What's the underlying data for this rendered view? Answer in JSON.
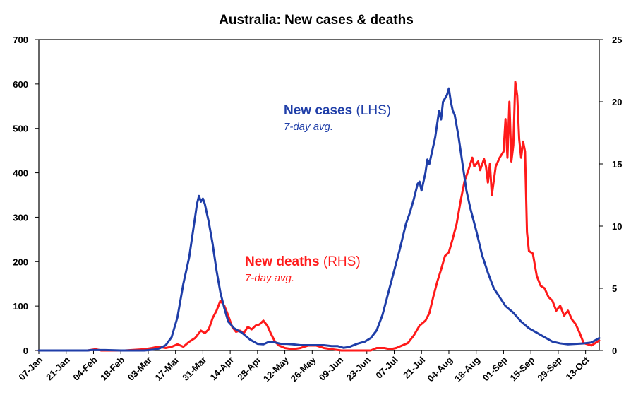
{
  "chart_data": {
    "type": "line",
    "title": "Australia: New cases & deaths",
    "x_tick_labels": [
      "07-Jan",
      "21-Jan",
      "04-Feb",
      "18-Feb",
      "03-Mar",
      "17-Mar",
      "31-Mar",
      "14-Apr",
      "28-Apr",
      "12-May",
      "26-May",
      "09-Jun",
      "23-Jun",
      "07-Jul",
      "21-Jul",
      "04-Aug",
      "18-Aug",
      "01-Sep",
      "15-Sep",
      "29-Sep",
      "13-Oct"
    ],
    "x_range": [
      "2020-01-07",
      "2020-10-20"
    ],
    "y_left": {
      "range": [
        0,
        700
      ],
      "ticks": [
        "0",
        "100",
        "200",
        "300",
        "400",
        "500",
        "600",
        "700"
      ]
    },
    "y_right": {
      "range": [
        0,
        25
      ],
      "ticks": [
        "0",
        "5",
        "10",
        "15",
        "20",
        "25"
      ]
    },
    "grid": false,
    "annotations": {
      "cases_bold": "New cases",
      "cases_norm": " (LHS)",
      "cases_sub": "7-day avg.",
      "deaths_bold": "New deaths",
      "deaths_norm": " (RHS)",
      "deaths_sub": "7-day avg."
    },
    "colors": {
      "cases": "#1f3ea8",
      "deaths": "#ff1a1a"
    },
    "series": [
      {
        "axis": "left",
        "points": [
          [
            "2020-01-07",
            0
          ],
          [
            "2020-01-25",
            0
          ],
          [
            "2020-02-01",
            0
          ],
          [
            "2020-02-03",
            1
          ],
          [
            "2020-02-10",
            1
          ],
          [
            "2020-02-18",
            0
          ],
          [
            "2020-02-25",
            0
          ],
          [
            "2020-03-01",
            0
          ],
          [
            "2020-03-06",
            2
          ],
          [
            "2020-03-09",
            5
          ],
          [
            "2020-03-12",
            12
          ],
          [
            "2020-03-15",
            30
          ],
          [
            "2020-03-18",
            75
          ],
          [
            "2020-03-21",
            150
          ],
          [
            "2020-03-24",
            210
          ],
          [
            "2020-03-26",
            270
          ],
          [
            "2020-03-28",
            330
          ],
          [
            "2020-03-29",
            348
          ],
          [
            "2020-03-30",
            335
          ],
          [
            "2020-03-31",
            342
          ],
          [
            "2020-04-01",
            330
          ],
          [
            "2020-04-03",
            290
          ],
          [
            "2020-04-05",
            240
          ],
          [
            "2020-04-07",
            180
          ],
          [
            "2020-04-09",
            130
          ],
          [
            "2020-04-11",
            95
          ],
          [
            "2020-04-13",
            65
          ],
          [
            "2020-04-16",
            50
          ],
          [
            "2020-04-20",
            40
          ],
          [
            "2020-04-24",
            25
          ],
          [
            "2020-04-28",
            15
          ],
          [
            "2020-05-01",
            14
          ],
          [
            "2020-05-04",
            20
          ],
          [
            "2020-05-07",
            18
          ],
          [
            "2020-05-10",
            15
          ],
          [
            "2020-05-13",
            15
          ],
          [
            "2020-05-16",
            14
          ],
          [
            "2020-05-20",
            12
          ],
          [
            "2020-05-24",
            12
          ],
          [
            "2020-05-28",
            12
          ],
          [
            "2020-06-01",
            12
          ],
          [
            "2020-06-05",
            10
          ],
          [
            "2020-06-08",
            10
          ],
          [
            "2020-06-11",
            6
          ],
          [
            "2020-06-14",
            8
          ],
          [
            "2020-06-18",
            15
          ],
          [
            "2020-06-22",
            20
          ],
          [
            "2020-06-25",
            28
          ],
          [
            "2020-06-28",
            45
          ],
          [
            "2020-07-01",
            80
          ],
          [
            "2020-07-04",
            130
          ],
          [
            "2020-07-07",
            180
          ],
          [
            "2020-07-10",
            230
          ],
          [
            "2020-07-13",
            285
          ],
          [
            "2020-07-15",
            310
          ],
          [
            "2020-07-17",
            340
          ],
          [
            "2020-07-19",
            375
          ],
          [
            "2020-07-20",
            380
          ],
          [
            "2020-07-21",
            360
          ],
          [
            "2020-07-23",
            400
          ],
          [
            "2020-07-24",
            430
          ],
          [
            "2020-07-25",
            420
          ],
          [
            "2020-07-26",
            440
          ],
          [
            "2020-07-28",
            480
          ],
          [
            "2020-07-30",
            540
          ],
          [
            "2020-07-31",
            520
          ],
          [
            "2020-08-01",
            560
          ],
          [
            "2020-08-03",
            575
          ],
          [
            "2020-08-04",
            590
          ],
          [
            "2020-08-05",
            560
          ],
          [
            "2020-08-06",
            540
          ],
          [
            "2020-08-07",
            530
          ],
          [
            "2020-08-09",
            480
          ],
          [
            "2020-08-11",
            420
          ],
          [
            "2020-08-13",
            360
          ],
          [
            "2020-08-15",
            320
          ],
          [
            "2020-08-18",
            270
          ],
          [
            "2020-08-21",
            215
          ],
          [
            "2020-08-24",
            175
          ],
          [
            "2020-08-27",
            140
          ],
          [
            "2020-08-30",
            120
          ],
          [
            "2020-09-02",
            100
          ],
          [
            "2020-09-06",
            85
          ],
          [
            "2020-09-10",
            65
          ],
          [
            "2020-09-14",
            50
          ],
          [
            "2020-09-18",
            40
          ],
          [
            "2020-09-22",
            30
          ],
          [
            "2020-09-26",
            20
          ],
          [
            "2020-09-30",
            16
          ],
          [
            "2020-10-04",
            14
          ],
          [
            "2020-10-08",
            15
          ],
          [
            "2020-10-12",
            16
          ],
          [
            "2020-10-16",
            18
          ],
          [
            "2020-10-20",
            28
          ]
        ]
      },
      {
        "axis": "right",
        "points": [
          [
            "2020-01-07",
            0
          ],
          [
            "2020-01-25",
            0
          ],
          [
            "2020-02-01",
            0
          ],
          [
            "2020-02-05",
            0.1
          ],
          [
            "2020-02-08",
            0
          ],
          [
            "2020-02-20",
            0
          ],
          [
            "2020-03-01",
            0.1
          ],
          [
            "2020-03-05",
            0.2
          ],
          [
            "2020-03-08",
            0.3
          ],
          [
            "2020-03-12",
            0.2
          ],
          [
            "2020-03-15",
            0.3
          ],
          [
            "2020-03-18",
            0.5
          ],
          [
            "2020-03-21",
            0.3
          ],
          [
            "2020-03-24",
            0.7
          ],
          [
            "2020-03-27",
            1.0
          ],
          [
            "2020-03-30",
            1.6
          ],
          [
            "2020-04-01",
            1.4
          ],
          [
            "2020-04-03",
            1.7
          ],
          [
            "2020-04-05",
            2.6
          ],
          [
            "2020-04-07",
            3.2
          ],
          [
            "2020-04-09",
            4.0
          ],
          [
            "2020-04-11",
            3.6
          ],
          [
            "2020-04-13",
            2.8
          ],
          [
            "2020-04-15",
            1.9
          ],
          [
            "2020-04-17",
            1.5
          ],
          [
            "2020-04-19",
            1.6
          ],
          [
            "2020-04-21",
            1.4
          ],
          [
            "2020-04-23",
            1.9
          ],
          [
            "2020-04-25",
            1.7
          ],
          [
            "2020-04-27",
            2.0
          ],
          [
            "2020-04-29",
            2.1
          ],
          [
            "2020-05-01",
            2.4
          ],
          [
            "2020-05-03",
            2.0
          ],
          [
            "2020-05-05",
            1.3
          ],
          [
            "2020-05-07",
            0.7
          ],
          [
            "2020-05-09",
            0.4
          ],
          [
            "2020-05-12",
            0.2
          ],
          [
            "2020-05-16",
            0.1
          ],
          [
            "2020-05-20",
            0.2
          ],
          [
            "2020-05-24",
            0.4
          ],
          [
            "2020-05-28",
            0.4
          ],
          [
            "2020-06-01",
            0.2
          ],
          [
            "2020-06-05",
            0.1
          ],
          [
            "2020-06-10",
            0
          ],
          [
            "2020-06-20",
            0
          ],
          [
            "2020-06-25",
            0
          ],
          [
            "2020-06-28",
            0.2
          ],
          [
            "2020-07-02",
            0.2
          ],
          [
            "2020-07-05",
            0.1
          ],
          [
            "2020-07-08",
            0.2
          ],
          [
            "2020-07-11",
            0.4
          ],
          [
            "2020-07-14",
            0.6
          ],
          [
            "2020-07-17",
            1.2
          ],
          [
            "2020-07-20",
            2.0
          ],
          [
            "2020-07-23",
            2.4
          ],
          [
            "2020-07-25",
            3.0
          ],
          [
            "2020-07-27",
            4.3
          ],
          [
            "2020-07-29",
            5.5
          ],
          [
            "2020-07-31",
            6.5
          ],
          [
            "2020-08-02",
            7.6
          ],
          [
            "2020-08-04",
            7.9
          ],
          [
            "2020-08-06",
            9.0
          ],
          [
            "2020-08-08",
            10.2
          ],
          [
            "2020-08-10",
            12.0
          ],
          [
            "2020-08-12",
            13.6
          ],
          [
            "2020-08-14",
            14.5
          ],
          [
            "2020-08-16",
            15.5
          ],
          [
            "2020-08-17",
            14.8
          ],
          [
            "2020-08-19",
            15.2
          ],
          [
            "2020-08-20",
            14.5
          ],
          [
            "2020-08-22",
            15.4
          ],
          [
            "2020-08-23",
            14.8
          ],
          [
            "2020-08-24",
            13.5
          ],
          [
            "2020-08-25",
            15.0
          ],
          [
            "2020-08-26",
            12.5
          ],
          [
            "2020-08-28",
            14.8
          ],
          [
            "2020-08-30",
            15.5
          ],
          [
            "2020-09-01",
            16.0
          ],
          [
            "2020-09-02",
            18.6
          ],
          [
            "2020-09-03",
            15.5
          ],
          [
            "2020-09-04",
            20.0
          ],
          [
            "2020-09-05",
            15.2
          ],
          [
            "2020-09-06",
            16.5
          ],
          [
            "2020-09-07",
            21.6
          ],
          [
            "2020-09-08",
            20.5
          ],
          [
            "2020-09-09",
            17.0
          ],
          [
            "2020-09-10",
            15.5
          ],
          [
            "2020-09-11",
            16.8
          ],
          [
            "2020-09-12",
            16.0
          ],
          [
            "2020-09-13",
            9.5
          ],
          [
            "2020-09-14",
            8.0
          ],
          [
            "2020-09-16",
            7.8
          ],
          [
            "2020-09-18",
            6.0
          ],
          [
            "2020-09-20",
            5.2
          ],
          [
            "2020-09-22",
            5.0
          ],
          [
            "2020-09-24",
            4.3
          ],
          [
            "2020-09-26",
            4.0
          ],
          [
            "2020-09-28",
            3.2
          ],
          [
            "2020-09-30",
            3.6
          ],
          [
            "2020-10-02",
            2.8
          ],
          [
            "2020-10-04",
            3.2
          ],
          [
            "2020-10-06",
            2.5
          ],
          [
            "2020-10-08",
            2.1
          ],
          [
            "2020-10-10",
            1.4
          ],
          [
            "2020-10-12",
            0.6
          ],
          [
            "2020-10-14",
            0.5
          ],
          [
            "2020-10-16",
            0.4
          ],
          [
            "2020-10-18",
            0.6
          ],
          [
            "2020-10-20",
            0.8
          ]
        ]
      }
    ]
  }
}
